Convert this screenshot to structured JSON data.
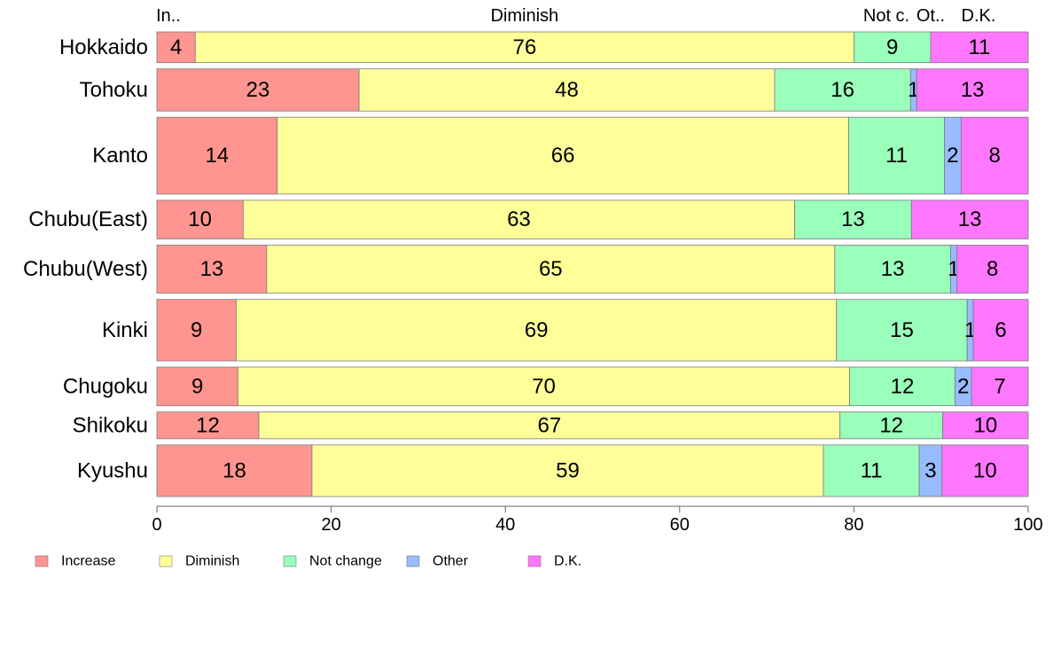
{
  "chart_data": {
    "type": "bar",
    "orientation": "horizontal",
    "stacked": true,
    "categories": [
      "Hokkaido",
      "Tohoku",
      "Kanto",
      "Chubu(East)",
      "Chubu(West)",
      "Kinki",
      "Chugoku",
      "Shikoku",
      "Kyushu"
    ],
    "category_weights": [
      0.62,
      0.85,
      1.55,
      0.78,
      0.97,
      1.24,
      0.78,
      0.54,
      1.04
    ],
    "series": [
      {
        "name": "Increase",
        "color": "#FF9590",
        "values": [
          4.4,
          23.2,
          13.8,
          9.9,
          12.6,
          9.1,
          9.3,
          11.7,
          17.8
        ]
      },
      {
        "name": "Diminish",
        "color": "#FFFF99",
        "values": [
          75.6,
          47.7,
          65.6,
          63.3,
          65.2,
          68.9,
          70.2,
          66.7,
          58.7
        ]
      },
      {
        "name": "Not change",
        "color": "#99FFBB",
        "values": [
          8.8,
          15.6,
          11.0,
          13.4,
          13.3,
          15.0,
          12.1,
          11.8,
          11.0
        ]
      },
      {
        "name": "Other",
        "color": "#99BBFF",
        "values": [
          0,
          0.7,
          1.9,
          0,
          0.7,
          0.7,
          1.9,
          0,
          2.6
        ]
      },
      {
        "name": "D.K.",
        "color": "#FF77FF",
        "values": [
          11.2,
          12.8,
          7.7,
          13.4,
          8.2,
          6.3,
          6.5,
          9.8,
          9.9
        ]
      }
    ],
    "bar_labels": [
      [
        "4",
        "76",
        "9",
        "",
        "11"
      ],
      [
        "23",
        "48",
        "16",
        "1",
        "13"
      ],
      [
        "14",
        "66",
        "11",
        "2",
        "8"
      ],
      [
        "10",
        "63",
        "13",
        "",
        "13"
      ],
      [
        "13",
        "65",
        "13",
        "1",
        "8"
      ],
      [
        "9",
        "69",
        "15",
        "1",
        "6"
      ],
      [
        "9",
        "70",
        "12",
        "2",
        "7"
      ],
      [
        "12",
        "67",
        "12",
        "",
        "10"
      ],
      [
        "18",
        "59",
        "11",
        "3",
        "10"
      ]
    ],
    "top_labels": [
      "In..",
      "Diminish",
      "Not c.",
      "Ot..",
      "D.K."
    ],
    "xlim": [
      0,
      100
    ],
    "xticks": [
      0,
      20,
      40,
      60,
      80,
      100
    ],
    "xlabel": "",
    "ylabel": "",
    "title": "",
    "grid": false,
    "legend_position": "bottom-left"
  }
}
